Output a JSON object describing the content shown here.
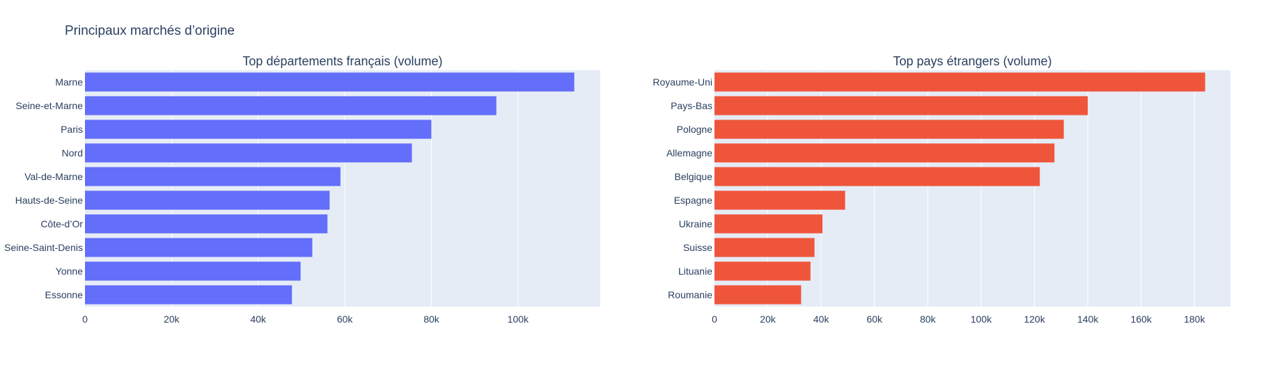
{
  "figure_title": "Principaux marchés d’origine",
  "colors": {
    "plot_bg": "#E5ECF6",
    "grid": "#FFFFFF",
    "text": "#2A3F5F",
    "series_fr": "#636EFA",
    "series_int": "#EF553B"
  },
  "chart_data": [
    {
      "type": "bar",
      "orientation": "horizontal",
      "title": "Top départements français (volume)",
      "xlabel": "",
      "ylabel": "",
      "categories": [
        "Marne",
        "Seine-et-Marne",
        "Paris",
        "Nord",
        "Val-de-Marne",
        "Hauts-de-Seine",
        "Côte-d’Or",
        "Seine-Saint-Denis",
        "Yonne",
        "Essonne"
      ],
      "values": [
        113000,
        95000,
        80000,
        75500,
        59000,
        56500,
        56000,
        52500,
        49800,
        47800
      ],
      "xlim": [
        0,
        119000
      ],
      "xticks": [
        0,
        20000,
        40000,
        60000,
        80000,
        100000
      ],
      "xtick_labels": [
        "0",
        "20k",
        "40k",
        "60k",
        "80k",
        "100k"
      ],
      "grid": true,
      "color": "#636EFA"
    },
    {
      "type": "bar",
      "orientation": "horizontal",
      "title": "Top pays étrangers (volume)",
      "xlabel": "",
      "ylabel": "",
      "categories": [
        "Royaume-Uni",
        "Pays-Bas",
        "Pologne",
        "Allemagne",
        "Belgique",
        "Espagne",
        "Ukraine",
        "Suisse",
        "Lituanie",
        "Roumanie"
      ],
      "values": [
        184000,
        140000,
        131000,
        127500,
        122000,
        49000,
        40500,
        37500,
        36000,
        32500
      ],
      "xlim": [
        0,
        193500
      ],
      "xticks": [
        0,
        20000,
        40000,
        60000,
        80000,
        100000,
        120000,
        140000,
        160000,
        180000
      ],
      "xtick_labels": [
        "0",
        "20k",
        "40k",
        "60k",
        "80k",
        "100k",
        "120k",
        "140k",
        "160k",
        "180k"
      ],
      "grid": true,
      "color": "#EF553B"
    }
  ]
}
